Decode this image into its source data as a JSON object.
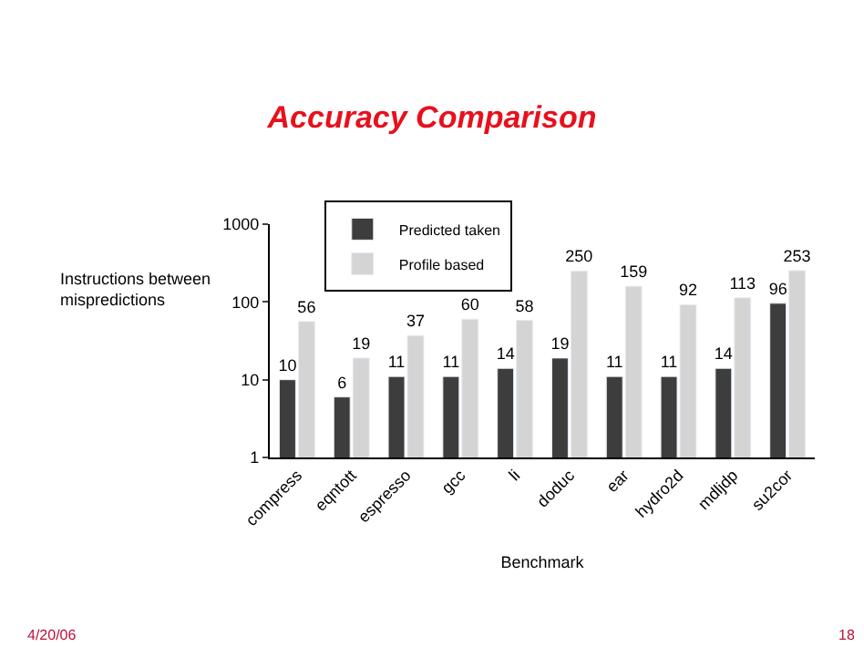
{
  "chart_data": {
    "type": "bar",
    "title": "Accuracy Comparison",
    "xlabel": "Benchmark",
    "ylabel": "Instructions between\nmispredictions",
    "categories": [
      "compress",
      "eqntott",
      "espresso",
      "gcc",
      "li",
      "doduc",
      "ear",
      "hydro2d",
      "mdljdp",
      "su2cor"
    ],
    "series": [
      {
        "name": "Predicted taken",
        "color": "#3d3d3d",
        "values": [
          10,
          6,
          11,
          11,
          14,
          19,
          11,
          11,
          14,
          96
        ]
      },
      {
        "name": "Profile based",
        "color": "#d4d4d4",
        "values": [
          56,
          19,
          37,
          60,
          58,
          250,
          159,
          92,
          113,
          253
        ]
      }
    ],
    "log": true,
    "ylim": [
      1,
      1000
    ],
    "yticks": [
      1,
      10,
      100,
      1000
    ],
    "data_labels": true,
    "legend": "top left",
    "annotations": [
      "4/20/06",
      "18"
    ]
  }
}
